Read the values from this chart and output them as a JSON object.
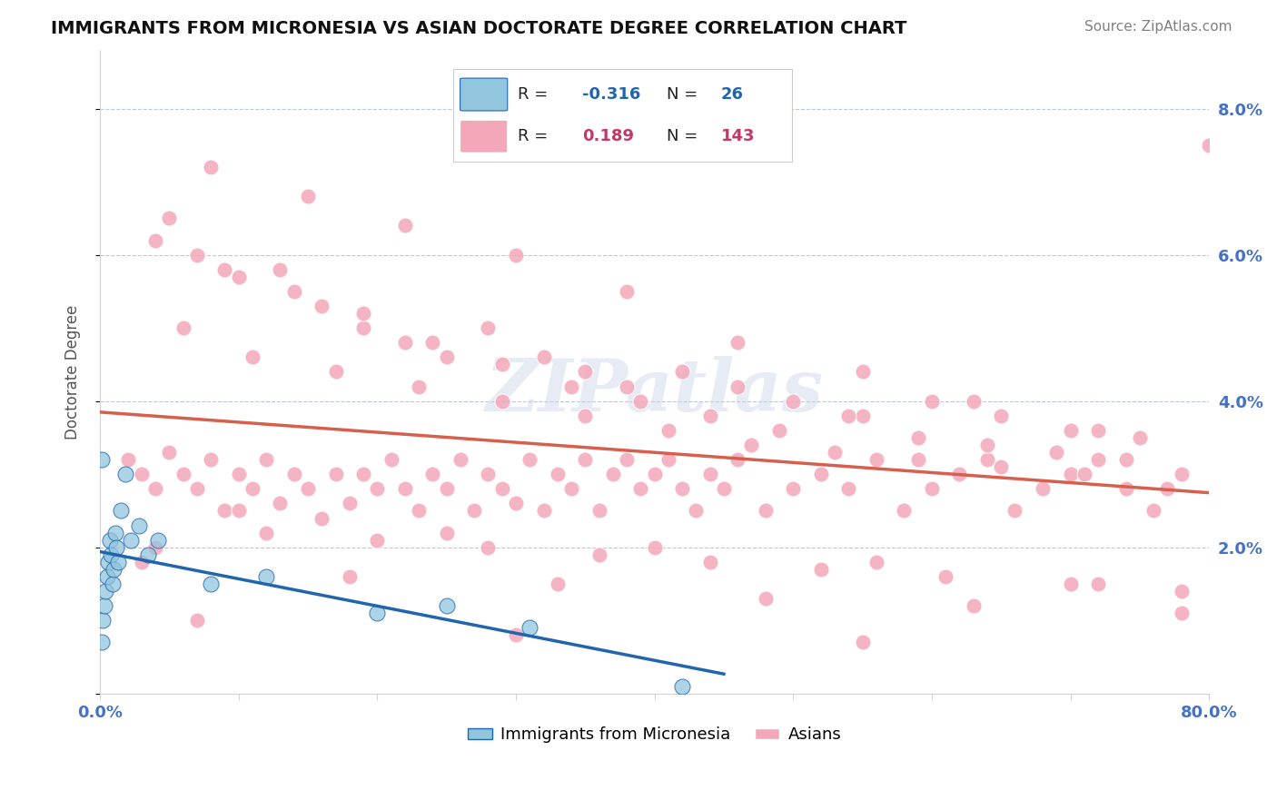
{
  "title": "IMMIGRANTS FROM MICRONESIA VS ASIAN DOCTORATE DEGREE CORRELATION CHART",
  "source": "Source: ZipAtlas.com",
  "ylabel": "Doctorate Degree",
  "xlim": [
    0.0,
    0.8
  ],
  "ylim": [
    0.0,
    0.088
  ],
  "xticks": [
    0.0,
    0.1,
    0.2,
    0.3,
    0.4,
    0.5,
    0.6,
    0.7,
    0.8
  ],
  "yticks_right": [
    0.0,
    0.02,
    0.04,
    0.06,
    0.08
  ],
  "ytick_labels_right": [
    "",
    "2.0%",
    "4.0%",
    "6.0%",
    "8.0%"
  ],
  "blue_color": "#92c5de",
  "pink_color": "#f4a7b9",
  "blue_edge_color": "#2166ac",
  "pink_edge_color": "#d6604d",
  "blue_line_color": "#2166ac",
  "pink_line_color": "#d6604d",
  "watermark": "ZIPatlas",
  "background_color": "#ffffff",
  "grid_color": "#b0b8cc",
  "blue_scatter_x": [
    0.001,
    0.002,
    0.003,
    0.004,
    0.005,
    0.006,
    0.007,
    0.008,
    0.009,
    0.01,
    0.011,
    0.012,
    0.013,
    0.015,
    0.018,
    0.022,
    0.028,
    0.035,
    0.042,
    0.08,
    0.12,
    0.2,
    0.25,
    0.31,
    0.42,
    0.001
  ],
  "blue_scatter_y": [
    0.007,
    0.01,
    0.012,
    0.014,
    0.016,
    0.018,
    0.021,
    0.019,
    0.015,
    0.017,
    0.022,
    0.02,
    0.018,
    0.025,
    0.03,
    0.021,
    0.023,
    0.019,
    0.021,
    0.015,
    0.016,
    0.011,
    0.012,
    0.009,
    0.001,
    0.032
  ],
  "pink_scatter_x": [
    0.02,
    0.03,
    0.04,
    0.05,
    0.06,
    0.07,
    0.08,
    0.09,
    0.1,
    0.11,
    0.12,
    0.13,
    0.14,
    0.15,
    0.16,
    0.17,
    0.18,
    0.19,
    0.2,
    0.21,
    0.22,
    0.23,
    0.24,
    0.25,
    0.26,
    0.27,
    0.28,
    0.29,
    0.3,
    0.31,
    0.32,
    0.33,
    0.34,
    0.35,
    0.36,
    0.37,
    0.38,
    0.39,
    0.4,
    0.41,
    0.42,
    0.43,
    0.44,
    0.45,
    0.46,
    0.48,
    0.5,
    0.52,
    0.54,
    0.56,
    0.58,
    0.6,
    0.62,
    0.64,
    0.66,
    0.68,
    0.7,
    0.72,
    0.74,
    0.76,
    0.78,
    0.04,
    0.07,
    0.1,
    0.13,
    0.16,
    0.19,
    0.22,
    0.25,
    0.28,
    0.32,
    0.35,
    0.38,
    0.42,
    0.46,
    0.5,
    0.55,
    0.6,
    0.65,
    0.7,
    0.75,
    0.05,
    0.09,
    0.14,
    0.19,
    0.24,
    0.29,
    0.34,
    0.39,
    0.44,
    0.49,
    0.54,
    0.59,
    0.64,
    0.69,
    0.74,
    0.06,
    0.11,
    0.17,
    0.23,
    0.29,
    0.35,
    0.41,
    0.47,
    0.53,
    0.59,
    0.65,
    0.71,
    0.77,
    0.08,
    0.15,
    0.22,
    0.3,
    0.38,
    0.46,
    0.55,
    0.63,
    0.72,
    0.04,
    0.12,
    0.2,
    0.28,
    0.36,
    0.44,
    0.52,
    0.61,
    0.7,
    0.78,
    0.03,
    0.18,
    0.33,
    0.48,
    0.63,
    0.78,
    0.1,
    0.25,
    0.4,
    0.56,
    0.72,
    0.07,
    0.3,
    0.55,
    0.8
  ],
  "pink_scatter_y": [
    0.032,
    0.03,
    0.028,
    0.033,
    0.03,
    0.028,
    0.032,
    0.025,
    0.03,
    0.028,
    0.032,
    0.026,
    0.03,
    0.028,
    0.024,
    0.03,
    0.026,
    0.03,
    0.028,
    0.032,
    0.028,
    0.025,
    0.03,
    0.028,
    0.032,
    0.025,
    0.03,
    0.028,
    0.026,
    0.032,
    0.025,
    0.03,
    0.028,
    0.032,
    0.025,
    0.03,
    0.032,
    0.028,
    0.03,
    0.032,
    0.028,
    0.025,
    0.03,
    0.028,
    0.032,
    0.025,
    0.028,
    0.03,
    0.028,
    0.032,
    0.025,
    0.028,
    0.03,
    0.032,
    0.025,
    0.028,
    0.03,
    0.032,
    0.028,
    0.025,
    0.03,
    0.062,
    0.06,
    0.057,
    0.058,
    0.053,
    0.05,
    0.048,
    0.046,
    0.05,
    0.046,
    0.044,
    0.042,
    0.044,
    0.042,
    0.04,
    0.038,
    0.04,
    0.038,
    0.036,
    0.035,
    0.065,
    0.058,
    0.055,
    0.052,
    0.048,
    0.045,
    0.042,
    0.04,
    0.038,
    0.036,
    0.038,
    0.035,
    0.034,
    0.033,
    0.032,
    0.05,
    0.046,
    0.044,
    0.042,
    0.04,
    0.038,
    0.036,
    0.034,
    0.033,
    0.032,
    0.031,
    0.03,
    0.028,
    0.072,
    0.068,
    0.064,
    0.06,
    0.055,
    0.048,
    0.044,
    0.04,
    0.036,
    0.02,
    0.022,
    0.021,
    0.02,
    0.019,
    0.018,
    0.017,
    0.016,
    0.015,
    0.014,
    0.018,
    0.016,
    0.015,
    0.013,
    0.012,
    0.011,
    0.025,
    0.022,
    0.02,
    0.018,
    0.015,
    0.01,
    0.008,
    0.007,
    0.075
  ]
}
